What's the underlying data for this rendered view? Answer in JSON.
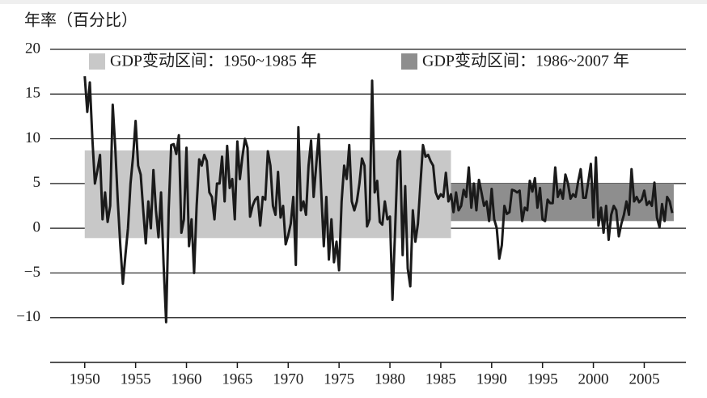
{
  "chart_data": {
    "type": "line",
    "y_label": "年率（百分比）",
    "xlim": [
      1946.6,
      2009.1
    ],
    "ylim": [
      -15,
      20
    ],
    "xticks": [
      1950,
      1955,
      1960,
      1965,
      1970,
      1975,
      1980,
      1985,
      1990,
      1995,
      2000,
      2005
    ],
    "yticks": [
      20,
      15,
      10,
      5,
      0,
      {
        "value": -5,
        "label": "−5"
      },
      {
        "value": -10,
        "label": "−10"
      }
    ],
    "grid": true,
    "bands": [
      {
        "name": "GDP变动区间：1950~1985 年",
        "color": "#c8c8c8",
        "x": [
          1950,
          1986
        ],
        "y": [
          -1.1,
          8.7
        ]
      },
      {
        "name": "GDP变动区间：1986~2007 年",
        "color": "#8e8e8e",
        "x": [
          1986,
          2007.9
        ],
        "y": [
          0.8,
          5
        ]
      }
    ],
    "x": [
      1950,
      1950.25,
      1950.5,
      1950.75,
      1951,
      1951.25,
      1951.5,
      1951.75,
      1952,
      1952.25,
      1952.5,
      1952.75,
      1953,
      1953.25,
      1953.5,
      1953.75,
      1954,
      1954.25,
      1954.5,
      1954.75,
      1955,
      1955.25,
      1955.5,
      1955.75,
      1956,
      1956.25,
      1956.5,
      1956.75,
      1957,
      1957.25,
      1957.5,
      1957.75,
      1958,
      1958.25,
      1958.5,
      1958.75,
      1959,
      1959.25,
      1959.5,
      1959.75,
      1960,
      1960.25,
      1960.5,
      1960.75,
      1961,
      1961.25,
      1961.5,
      1961.75,
      1962,
      1962.25,
      1962.5,
      1962.75,
      1963,
      1963.25,
      1963.5,
      1963.75,
      1964,
      1964.25,
      1964.5,
      1964.75,
      1965,
      1965.25,
      1965.5,
      1965.75,
      1966,
      1966.25,
      1966.5,
      1966.75,
      1967,
      1967.25,
      1967.5,
      1967.75,
      1968,
      1968.25,
      1968.5,
      1968.75,
      1969,
      1969.25,
      1969.5,
      1969.75,
      1970,
      1970.25,
      1970.5,
      1970.75,
      1971,
      1971.25,
      1971.5,
      1971.75,
      1972,
      1972.25,
      1972.5,
      1972.75,
      1973,
      1973.25,
      1973.5,
      1973.75,
      1974,
      1974.25,
      1974.5,
      1974.75,
      1975,
      1975.25,
      1975.5,
      1975.75,
      1976,
      1976.25,
      1976.5,
      1976.75,
      1977,
      1977.25,
      1977.5,
      1977.75,
      1978,
      1978.25,
      1978.5,
      1978.75,
      1979,
      1979.25,
      1979.5,
      1979.75,
      1980,
      1980.25,
      1980.5,
      1980.75,
      1981,
      1981.25,
      1981.5,
      1981.75,
      1982,
      1982.25,
      1982.5,
      1982.75,
      1983,
      1983.25,
      1983.5,
      1983.75,
      1984,
      1984.25,
      1984.5,
      1984.75,
      1985,
      1985.25,
      1985.5,
      1985.75,
      1986,
      1986.25,
      1986.5,
      1986.75,
      1987,
      1987.25,
      1987.5,
      1987.75,
      1988,
      1988.25,
      1988.5,
      1988.75,
      1989,
      1989.25,
      1989.5,
      1989.75,
      1990,
      1990.25,
      1990.5,
      1990.75,
      1991,
      1991.25,
      1991.5,
      1991.75,
      1992,
      1992.25,
      1992.5,
      1992.75,
      1993,
      1993.25,
      1993.5,
      1993.75,
      1994,
      1994.25,
      1994.5,
      1994.75,
      1995,
      1995.25,
      1995.5,
      1995.75,
      1996,
      1996.25,
      1996.5,
      1996.75,
      1997,
      1997.25,
      1997.5,
      1997.75,
      1998,
      1998.25,
      1998.5,
      1998.75,
      1999,
      1999.25,
      1999.5,
      1999.75,
      2000,
      2000.25,
      2000.5,
      2000.75,
      2001,
      2001.25,
      2001.5,
      2001.75,
      2002,
      2002.25,
      2002.5,
      2002.75,
      2003,
      2003.25,
      2003.5,
      2003.75,
      2004,
      2004.25,
      2004.5,
      2004.75,
      2005,
      2005.25,
      2005.5,
      2005.75,
      2006,
      2006.25,
      2006.5,
      2006.75,
      2007,
      2007.25,
      2007.5,
      2007.75
    ],
    "series": [
      {
        "color": "#1a1a1a",
        "values": [
          17,
          13,
          16.3,
          10,
          5,
          6.5,
          8.2,
          1,
          4,
          0.7,
          2.5,
          13.8,
          9,
          3,
          -2,
          -6.2,
          -3,
          0,
          5,
          8,
          12,
          7,
          6,
          2,
          -1.7,
          3,
          0,
          6.5,
          2,
          -1,
          4,
          -4,
          -10.5,
          2,
          9.3,
          9.4,
          8.3,
          10.4,
          -0.5,
          1,
          9,
          -2,
          1,
          -5,
          2.5,
          7.7,
          7,
          8.2,
          7.5,
          4,
          3.5,
          1,
          5,
          5,
          8,
          3,
          9.2,
          4.5,
          5.5,
          1,
          9.7,
          5.5,
          8,
          10,
          9,
          1.3,
          2.5,
          3.2,
          3.5,
          0.3,
          3.5,
          3.2,
          8.6,
          7,
          2.5,
          1.5,
          6.3,
          1.2,
          2.5,
          -1.8,
          -0.8,
          0.5,
          3.5,
          -4.1,
          11.3,
          2,
          3,
          1.5,
          7,
          9.8,
          3.5,
          7,
          10.5,
          4,
          -2,
          3.5,
          -3.5,
          1,
          -3.8,
          -1.5,
          -4.7,
          3,
          7,
          5.5,
          9.3,
          3,
          2,
          3,
          5,
          7.8,
          7,
          0.2,
          1,
          16.5,
          4,
          5.3,
          0.7,
          0.4,
          3,
          1,
          1.3,
          -8,
          -0.5,
          7.6,
          8.6,
          -3,
          4.7,
          -4.5,
          -6.5,
          2,
          -1.5,
          0.5,
          5,
          9.3,
          8,
          8.2,
          7.5,
          7,
          4,
          3.3,
          3.8,
          3.5,
          6.2,
          3,
          3.8,
          1.8,
          4,
          2,
          2.5,
          4.3,
          3.5,
          6.8,
          2.3,
          5,
          2,
          5.4,
          4,
          2.5,
          3,
          0.8,
          4.4,
          1,
          0,
          -3.4,
          -1.9,
          2.5,
          1.6,
          1.8,
          4.3,
          4.2,
          4,
          4.2,
          0.8,
          2.3,
          2,
          5.3,
          4.1,
          5.6,
          2.3,
          4.5,
          1,
          0.8,
          3.2,
          2.8,
          2.8,
          6.8,
          3.5,
          4.3,
          3.3,
          6,
          5,
          3.3,
          3.8,
          3.5,
          5.2,
          6.6,
          3.4,
          3.4,
          5.2,
          7.2,
          1.2,
          7.9,
          0.3,
          2.3,
          -0.5,
          2.5,
          -1.3,
          1.5,
          2.5,
          2,
          -0.9,
          0.5,
          1.5,
          3,
          1.5,
          6.6,
          3,
          3.5,
          2.9,
          3.2,
          4.2,
          2.6,
          3,
          2.5,
          5.1,
          1.2,
          0.1,
          2.7,
          0.8,
          3.5,
          3,
          1.7
        ]
      }
    ]
  }
}
